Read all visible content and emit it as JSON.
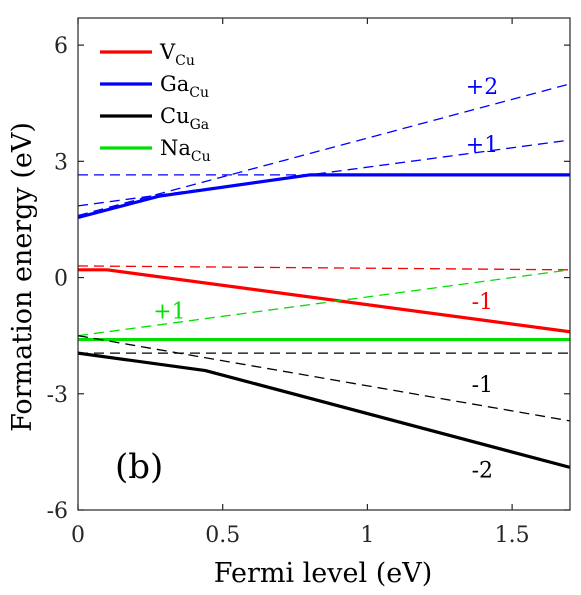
{
  "chart_data": {
    "type": "line",
    "title": "",
    "xlabel": "Fermi level (eV)",
    "ylabel": "Formation energy (eV)",
    "xlim": [
      0,
      1.7
    ],
    "ylim": [
      -6,
      6.7
    ],
    "xticks": [
      0,
      0.5,
      1,
      1.5
    ],
    "xtick_labels": [
      "0",
      "0.5",
      "1",
      "1.5"
    ],
    "yticks": [
      -6,
      -3,
      0,
      3,
      6
    ],
    "ytick_labels": [
      "-6",
      "-3",
      "0",
      "3",
      "6"
    ],
    "grid": false,
    "legend_position": "top-left",
    "panel_label": "(b)",
    "series": [
      {
        "name": "V",
        "subscript": "Cu",
        "color": "#ff0000",
        "style": "solid",
        "in_legend": true,
        "x": [
          0,
          0.1,
          1.7
        ],
        "y": [
          0.2,
          0.2,
          -1.4
        ]
      },
      {
        "name": "Ga",
        "subscript": "Cu",
        "color": "#0000ff",
        "style": "solid",
        "in_legend": true,
        "x": [
          0,
          0.28,
          0.8,
          1.7
        ],
        "y": [
          1.55,
          2.1,
          2.65,
          2.65
        ]
      },
      {
        "name": "Cu",
        "subscript": "Ga",
        "color": "#000000",
        "style": "solid",
        "in_legend": true,
        "x": [
          0,
          0.44,
          1.7
        ],
        "y": [
          -1.95,
          -2.4,
          -4.9
        ]
      },
      {
        "name": "Na",
        "subscript": "Cu",
        "color": "#00e000",
        "style": "solid",
        "in_legend": true,
        "x": [
          0,
          1.7
        ],
        "y": [
          -1.6,
          -1.6
        ]
      },
      {
        "color": "#0000ff",
        "style": "dashed",
        "in_legend": false,
        "x": [
          0,
          1.7
        ],
        "y": [
          1.6,
          5.0
        ]
      },
      {
        "color": "#0000ff",
        "style": "dashed",
        "in_legend": false,
        "x": [
          0,
          1.7
        ],
        "y": [
          1.85,
          3.55
        ]
      },
      {
        "color": "#0000ff",
        "style": "dashed",
        "in_legend": false,
        "x": [
          0,
          1.7
        ],
        "y": [
          2.65,
          2.65
        ]
      },
      {
        "color": "#ff0000",
        "style": "dashed",
        "in_legend": false,
        "x": [
          0,
          1.7
        ],
        "y": [
          0.3,
          0.2
        ]
      },
      {
        "color": "#00e000",
        "style": "dashed",
        "in_legend": false,
        "x": [
          0,
          1.7
        ],
        "y": [
          -1.5,
          0.2
        ]
      },
      {
        "color": "#000000",
        "style": "dashed",
        "in_legend": false,
        "x": [
          0,
          1.7
        ],
        "y": [
          -1.95,
          -1.95
        ]
      },
      {
        "color": "#000000",
        "style": "dashed",
        "in_legend": false,
        "x": [
          0,
          1.7
        ],
        "y": [
          -1.5,
          -3.7
        ]
      }
    ],
    "annotations": [
      {
        "text": "+2",
        "color": "#0000ff",
        "x": 1.34,
        "y": 4.95
      },
      {
        "text": "+1",
        "color": "#0000ff",
        "x": 1.34,
        "y": 3.45
      },
      {
        "text": "-1",
        "color": "#ff0000",
        "x": 1.36,
        "y": -0.6
      },
      {
        "text": "+1",
        "color": "#00e000",
        "x": 0.26,
        "y": -0.85
      },
      {
        "text": "-1",
        "color": "#000000",
        "x": 1.36,
        "y": -2.75
      },
      {
        "text": "-2",
        "color": "#000000",
        "x": 1.36,
        "y": -4.95
      }
    ]
  }
}
